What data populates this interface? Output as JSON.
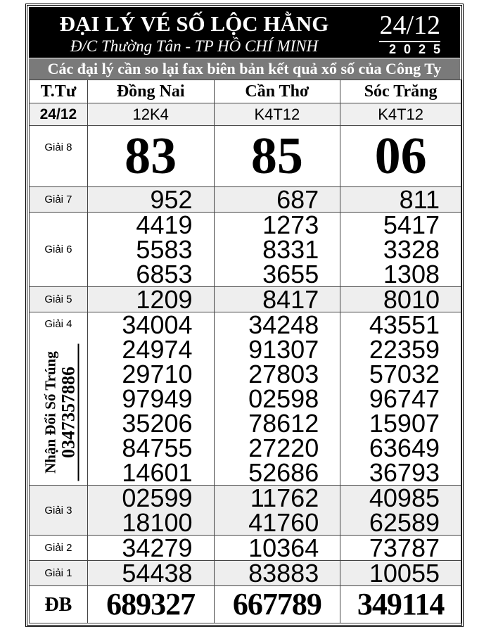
{
  "header": {
    "title": "ĐẠI LÝ VÉ SỐ LỘC HẰNG",
    "address": "Đ/C Thường Tân - TP HỒ CHÍ MINH",
    "date_daymonth": "24/12",
    "date_year": "2025"
  },
  "notice": "Các đại lý cần so lại fax biên bản kết quả xổ số của Công Ty",
  "columns": {
    "label": "T.Tư",
    "provinces": [
      "Đồng Nai",
      "Cần Thơ",
      "Sóc Trăng"
    ]
  },
  "codes": {
    "label": "24/12",
    "values": [
      "12K4",
      "K4T12",
      "K4T12"
    ]
  },
  "side_note": {
    "line1": "Nhận Đổi Số Trúng",
    "phone": "0347357886"
  },
  "prizes": [
    {
      "label": "Giải 8",
      "values": [
        [
          "83"
        ],
        [
          "85"
        ],
        [
          "06"
        ]
      ]
    },
    {
      "label": "Giải 7",
      "values": [
        [
          "952"
        ],
        [
          "687"
        ],
        [
          "811"
        ]
      ]
    },
    {
      "label": "Giải 6",
      "values": [
        [
          "4419",
          "5583",
          "6853"
        ],
        [
          "1273",
          "8331",
          "3655"
        ],
        [
          "5417",
          "3328",
          "1308"
        ]
      ]
    },
    {
      "label": "Giải 5",
      "values": [
        [
          "1209"
        ],
        [
          "8417"
        ],
        [
          "8010"
        ]
      ]
    },
    {
      "label": "Giải 4",
      "values": [
        [
          "34004",
          "24974",
          "29710",
          "97949",
          "35206",
          "84755",
          "14601"
        ],
        [
          "34248",
          "91307",
          "27803",
          "02598",
          "78612",
          "27220",
          "52686"
        ],
        [
          "43551",
          "22359",
          "57032",
          "96747",
          "15907",
          "63649",
          "36793"
        ]
      ]
    },
    {
      "label": "Giải 3",
      "values": [
        [
          "02599",
          "18100"
        ],
        [
          "11762",
          "41760"
        ],
        [
          "40985",
          "62589"
        ]
      ]
    },
    {
      "label": "Giải 2",
      "values": [
        [
          "34279"
        ],
        [
          "10364"
        ],
        [
          "73787"
        ]
      ]
    },
    {
      "label": "Giải 1",
      "values": [
        [
          "54438"
        ],
        [
          "83883"
        ],
        [
          "10055"
        ]
      ]
    },
    {
      "label": "ĐB",
      "values": [
        [
          "689327"
        ],
        [
          "667789"
        ],
        [
          "349114"
        ]
      ]
    }
  ]
}
